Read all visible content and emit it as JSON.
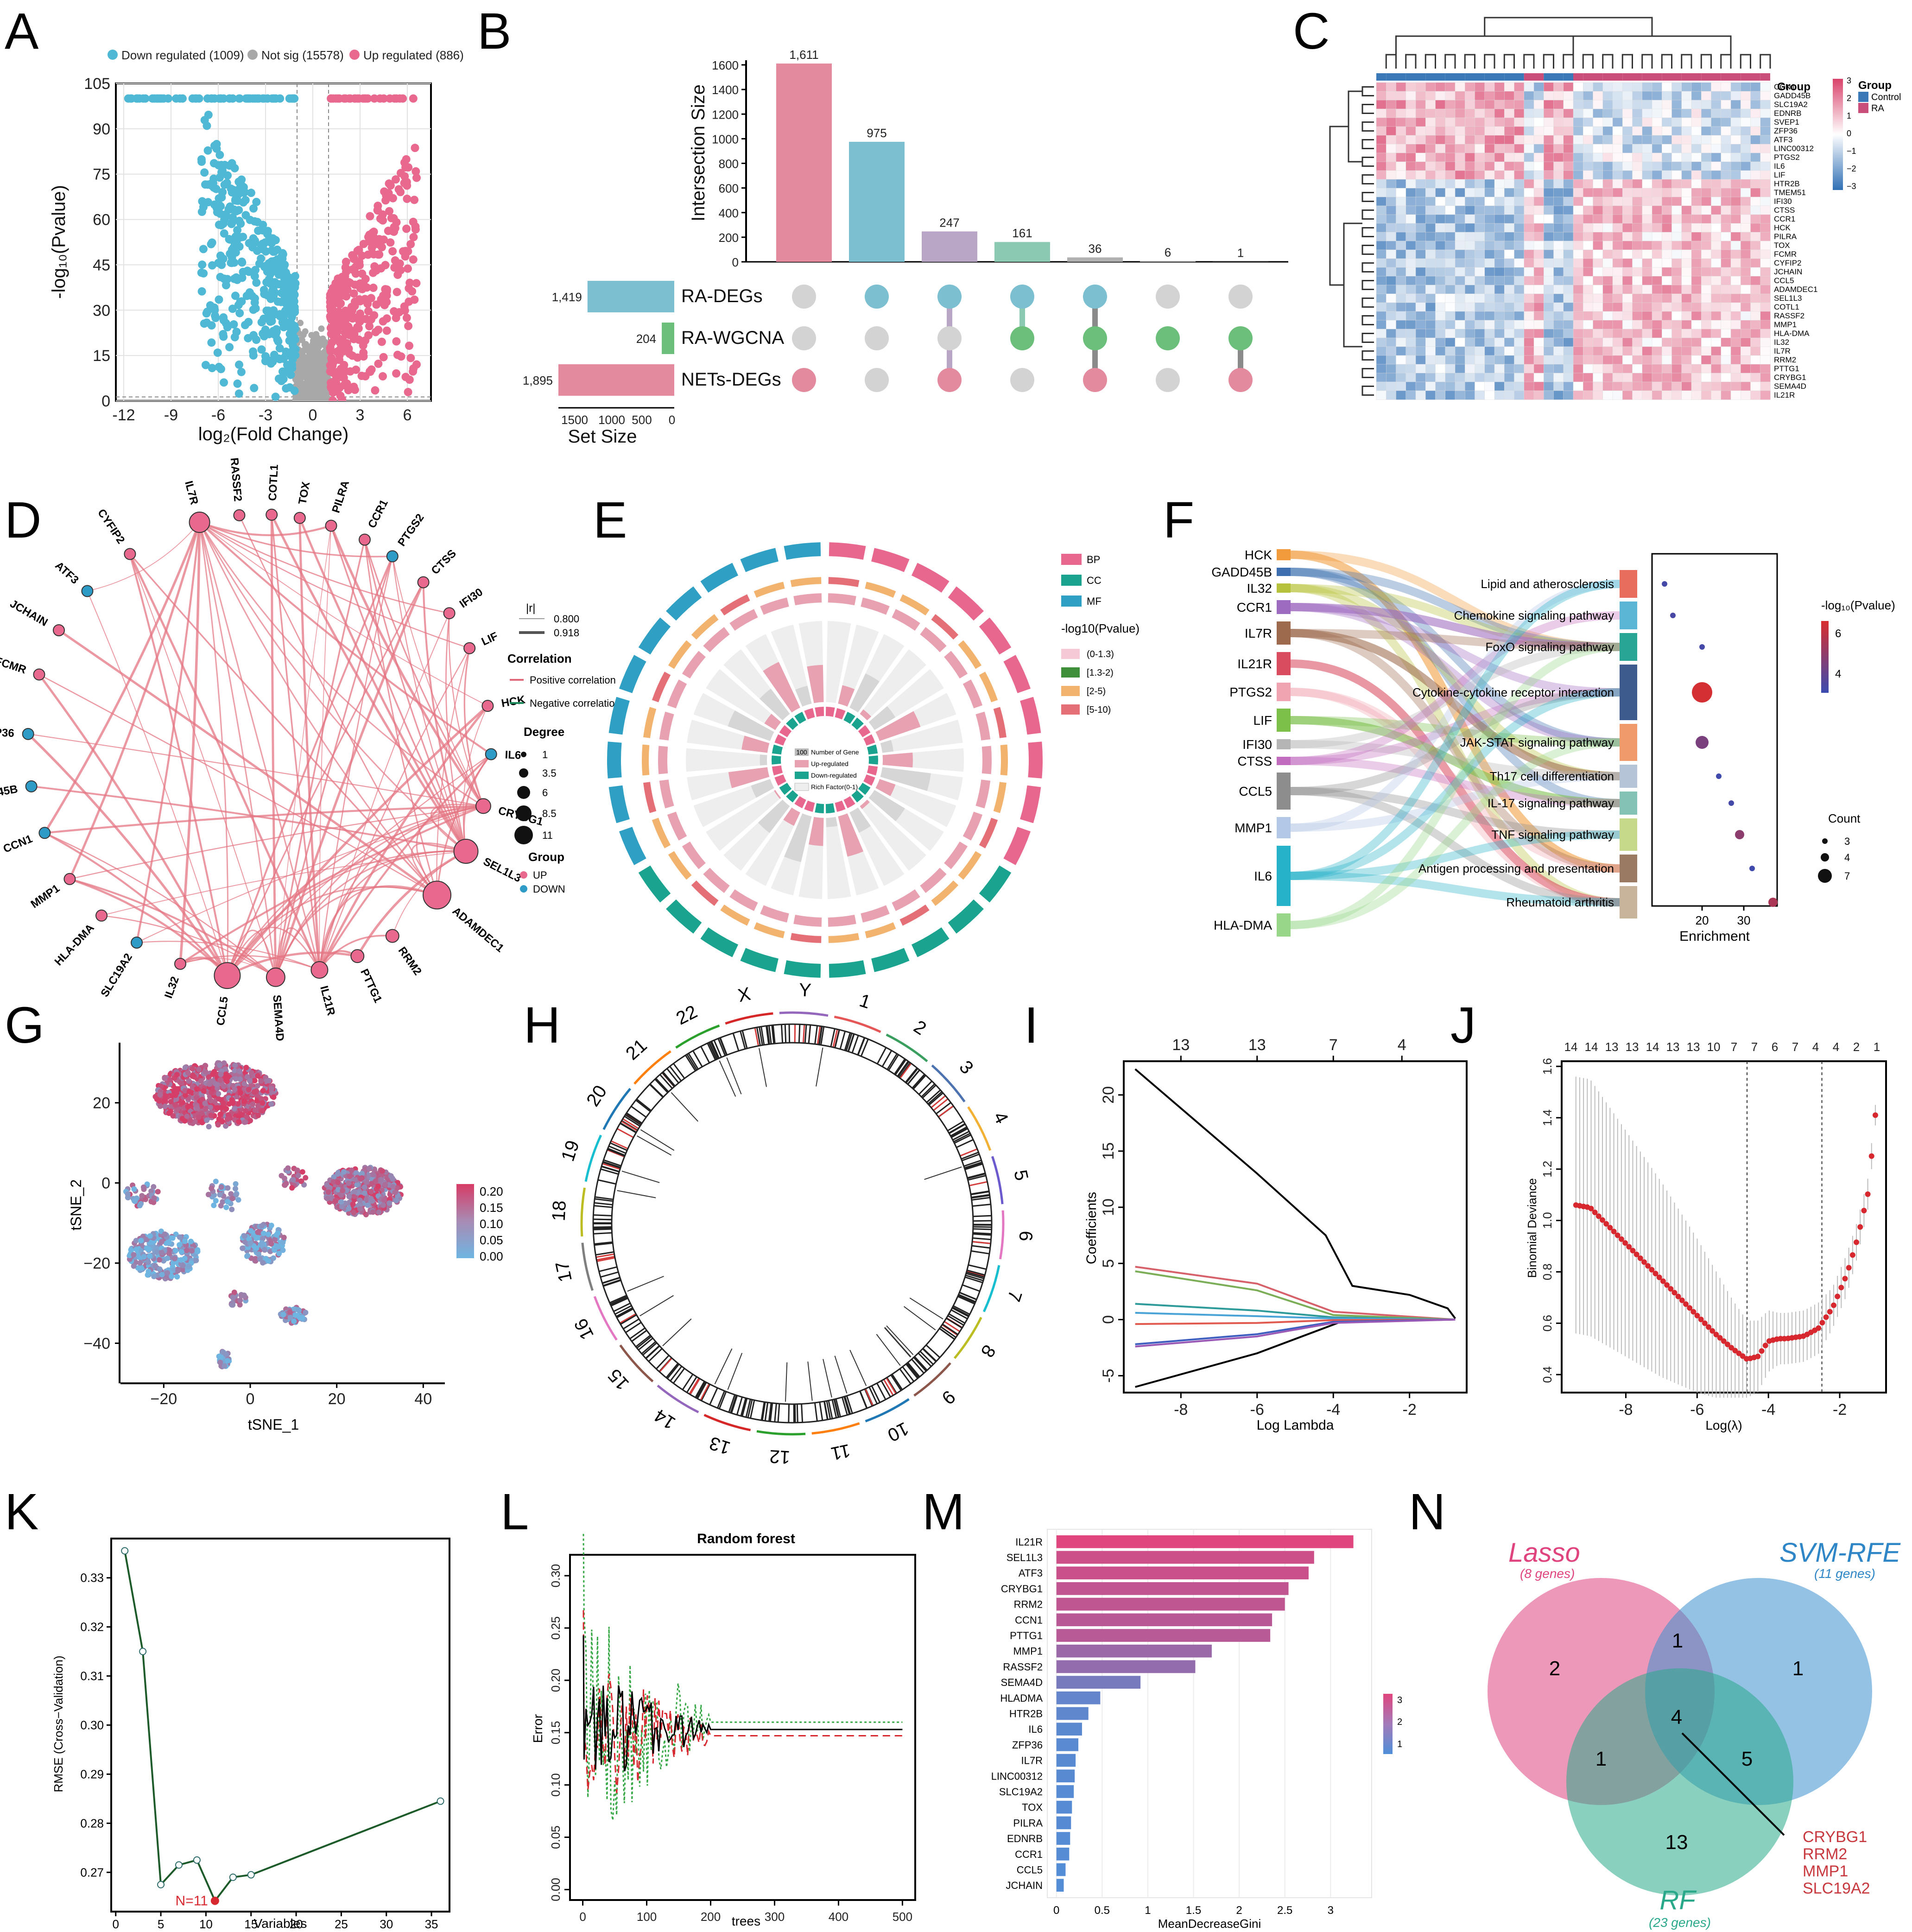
{
  "panel_labels": [
    "A",
    "B",
    "C",
    "D",
    "E",
    "F",
    "G",
    "H",
    "I",
    "J",
    "K",
    "L",
    "M",
    "N"
  ],
  "colors": {
    "down": "#4fb8d4",
    "up": "#e8688e",
    "notsig": "#a8a8a8",
    "wgcna": "#6cbf7a",
    "purple": "#b9a6c7",
    "teal": "#8bc9b3",
    "pink": "#e38a9e",
    "blue": "#7bbfd1"
  },
  "chart_data": [
    {
      "panel": "A",
      "type": "scatter",
      "legend": [
        {
          "label": "Down regulated (1009)",
          "color": "#4fb8d4"
        },
        {
          "label": "Not sig (15578)",
          "color": "#a8a8a8"
        },
        {
          "label": "Up regulated (886)",
          "color": "#e8688e"
        }
      ],
      "xlabel": "log₂(Fold Change)",
      "ylabel": "-log₁₀(Pvalue)",
      "xlim": [
        -12.5,
        7.5
      ],
      "ylim": [
        0,
        105
      ],
      "xticks": [
        -12,
        -9,
        -6,
        -3,
        0,
        3,
        6
      ],
      "yticks": [
        0,
        15,
        30,
        45,
        60,
        75,
        90,
        105
      ],
      "thresholds": {
        "fc": [
          -1,
          1
        ],
        "p": 1.3
      }
    },
    {
      "panel": "B",
      "type": "bar",
      "ylabel": "Intersection Size",
      "ylim": [
        0,
        1600
      ],
      "yticks": [
        0,
        200,
        400,
        600,
        800,
        1000,
        1200,
        1400,
        1600
      ],
      "values": [
        1611,
        975,
        247,
        161,
        36,
        6,
        1
      ],
      "value_labels": [
        "1,611",
        "975",
        "247",
        "161",
        "36",
        "6",
        "1"
      ],
      "bar_colors": [
        "#e38a9e",
        "#7bbfd1",
        "#b9a6c7",
        "#8bc9b3",
        "#b0b0b0",
        "#b0b0b0",
        "#b0b0b0"
      ],
      "sets": [
        {
          "name": "RA-DEGs",
          "size": 1419,
          "size_label": "1,419",
          "color": "#7bbfd1"
        },
        {
          "name": "RA-WGCNA",
          "size": 204,
          "size_label": "204",
          "color": "#6cbf7a"
        },
        {
          "name": "NETs-DEGs",
          "size": 1895,
          "size_label": "1,895",
          "color": "#e38a9e"
        }
      ],
      "membership": [
        [
          0,
          0,
          1
        ],
        [
          1,
          0,
          0
        ],
        [
          1,
          0,
          1
        ],
        [
          1,
          1,
          0
        ],
        [
          1,
          1,
          1
        ],
        [
          0,
          1,
          0
        ],
        [
          0,
          1,
          1
        ]
      ],
      "set_size_label": "Set Size",
      "set_size_ticks": [
        "1500",
        "1000",
        "500",
        "0"
      ]
    },
    {
      "panel": "C",
      "type": "heatmap",
      "genes": [
        "CCN1",
        "GADD45B",
        "SLC19A2",
        "EDNRB",
        "SVEP1",
        "ZFP36",
        "ATF3",
        "LINC00312",
        "PTGS2",
        "IL6",
        "LIF",
        "HTR2B",
        "TMEM51",
        "IFI30",
        "CTSS",
        "CCR1",
        "HCK",
        "PILRA",
        "TOX",
        "FCMR",
        "CYFIP2",
        "JCHAIN",
        "CCL5",
        "ADAMDEC1",
        "SEL1L3",
        "COTL1",
        "RASSF2",
        "MMP1",
        "HLA-DMA",
        "IL32",
        "IL7R",
        "RRM2",
        "PTTG1",
        "CRYBG1",
        "SEMA4D",
        "IL21R"
      ],
      "group_title": "Group",
      "groups": [
        {
          "name": "Control",
          "color": "#3a78b8"
        },
        {
          "name": "RA",
          "color": "#c94e7a"
        }
      ],
      "scale": {
        "min": -3,
        "max": 3,
        "ticks": [
          "3",
          "2",
          "1",
          "0",
          "−1",
          "−2",
          "−3"
        ]
      }
    },
    {
      "panel": "F",
      "type": "scatter",
      "pathways": [
        "Lipid and atherosclerosis",
        "Chemokine signaling pathway",
        "FoxO signaling pathway",
        "Cytokine-cytokine receptor interaction",
        "JAK-STAT signaling pathway",
        "Th17 cell differentiation",
        "IL-17 signaling pathway",
        "TNF signaling pathway",
        "Antigen processing and presentation",
        "Rheumatoid arthritis"
      ],
      "enrichment": [
        11,
        13,
        20,
        20,
        20,
        24,
        27,
        29,
        32,
        37
      ],
      "count": [
        3,
        3,
        3,
        7,
        5,
        3,
        3,
        4,
        3,
        4
      ],
      "neglogp": [
        3.5,
        3.6,
        3.5,
        6.5,
        4.6,
        3.4,
        3.5,
        5.0,
        3.4,
        5.6
      ],
      "genes": [
        "HCK",
        "GADD45B",
        "IL32",
        "CCR1",
        "IL7R",
        "IL21R",
        "PTGS2",
        "LIF",
        "IFI30",
        "CTSS",
        "CCL5",
        "MMP1",
        "IL6",
        "HLA-DMA"
      ],
      "gene_colors": [
        "#f29b3c",
        "#3d6fb0",
        "#b6c23b",
        "#9d6bbf",
        "#9d6a4d",
        "#d94b5e",
        "#f0a3b0",
        "#7cc04a",
        "#b5b5b5",
        "#c26cc0",
        "#8d8d8d",
        "#b3c7e6",
        "#26b3c9",
        "#98d68a"
      ],
      "xlabel": "Enrichment",
      "xticks": [
        20,
        30
      ],
      "xlim": [
        8,
        38
      ],
      "color_title": "-log₁₀(Pvalue)",
      "color_ticks": [
        "6",
        "4"
      ],
      "size_title": "Count",
      "size_ticks": [
        "3",
        "4",
        "7"
      ]
    },
    {
      "panel": "I",
      "type": "line",
      "xlabel": "Log Lambda",
      "ylabel": "Coefficients",
      "xlim": [
        -9.5,
        -0.5
      ],
      "ylim": [
        -6.5,
        23
      ],
      "xticks": [
        -8,
        -6,
        -4,
        -2
      ],
      "yticks": [
        -5,
        0,
        5,
        10,
        15,
        20
      ],
      "top_ticks": [
        "13",
        "13",
        "7",
        "4"
      ],
      "top_ticks_x": [
        -8,
        -6,
        -4,
        -2.2
      ],
      "series": [
        {
          "name": "s1",
          "color": "#000000",
          "x": [
            -9.2,
            -6,
            -4.2,
            -3.5,
            -2,
            -1,
            -0.8
          ],
          "y": [
            22.3,
            13,
            7.5,
            3,
            2.2,
            1,
            0.1
          ]
        },
        {
          "name": "s2",
          "color": "#000000",
          "x": [
            -9.2,
            -6,
            -3.8,
            -0.8
          ],
          "y": [
            -6,
            -3,
            -0.2,
            0
          ]
        },
        {
          "name": "s3",
          "color": "#d6616b",
          "x": [
            -9.2,
            -6,
            -4,
            -0.8
          ],
          "y": [
            4.7,
            3.2,
            0.7,
            0
          ]
        },
        {
          "name": "s4",
          "color": "#7cae58",
          "x": [
            -9.2,
            -6,
            -4,
            -0.8
          ],
          "y": [
            4.3,
            2.6,
            0.4,
            0
          ]
        },
        {
          "name": "s5",
          "color": "#2f9a9a",
          "x": [
            -9.2,
            -6,
            -4,
            -0.8
          ],
          "y": [
            1.4,
            0.8,
            0.2,
            0
          ]
        },
        {
          "name": "s6",
          "color": "#4aa3d6",
          "x": [
            -9.2,
            -6,
            -4,
            -0.8
          ],
          "y": [
            0.6,
            0.3,
            0.1,
            0
          ]
        },
        {
          "name": "s7",
          "color": "#e05a4f",
          "x": [
            -9.2,
            -6,
            -4,
            -0.8
          ],
          "y": [
            -0.4,
            -0.3,
            -0.05,
            0
          ]
        },
        {
          "name": "s8",
          "color": "#3e5fbf",
          "x": [
            -9.2,
            -6,
            -4,
            -0.8
          ],
          "y": [
            -2.2,
            -1.3,
            -0.2,
            0
          ]
        },
        {
          "name": "s9",
          "color": "#9b59b6",
          "x": [
            -9.2,
            -6,
            -4,
            -0.8
          ],
          "y": [
            -2.4,
            -1.5,
            -0.3,
            0
          ]
        }
      ]
    },
    {
      "panel": "J",
      "type": "line",
      "xlabel": "Log(λ)",
      "ylabel": "Binomial Deviance",
      "xlim": [
        -9.8,
        -0.7
      ],
      "ylim": [
        0.33,
        1.62
      ],
      "xticks": [
        -8,
        -6,
        -4,
        -2
      ],
      "yticks": [
        0.4,
        0.6,
        0.8,
        1.0,
        1.2,
        1.4,
        1.6
      ],
      "top_ticks": [
        "14",
        "14",
        "13",
        "13",
        "14",
        "13",
        "13",
        "10",
        "7",
        "7",
        "6",
        "7",
        "4",
        "4",
        "2",
        "1"
      ],
      "vlines": [
        -4.6,
        -2.5
      ],
      "x": [
        -9.4,
        -9,
        -8.5,
        -8,
        -7.5,
        -7,
        -6.5,
        -6,
        -5.5,
        -5,
        -4.6,
        -4.3,
        -4,
        -3.7,
        -3.5,
        -3,
        -2.6,
        -2.2,
        -1.8,
        -1.5,
        -1.2,
        -1
      ],
      "y": [
        1.06,
        1.05,
        0.98,
        0.91,
        0.84,
        0.77,
        0.7,
        0.63,
        0.56,
        0.5,
        0.46,
        0.47,
        0.53,
        0.54,
        0.54,
        0.55,
        0.58,
        0.66,
        0.79,
        0.93,
        1.11,
        1.41
      ],
      "err": [
        0.5,
        0.5,
        0.47,
        0.44,
        0.41,
        0.38,
        0.34,
        0.3,
        0.25,
        0.19,
        0.15,
        0.14,
        0.12,
        0.1,
        0.1,
        0.1,
        0.1,
        0.08,
        0.08,
        0.07,
        0.06,
        0.04
      ]
    },
    {
      "panel": "K",
      "type": "line",
      "xlabel": "Variables",
      "ylabel": "RMSE (Cross−Validation)",
      "xlim": [
        -0.5,
        37
      ],
      "ylim": [
        0.262,
        0.338
      ],
      "xticks": [
        0,
        5,
        10,
        15,
        20,
        25,
        30,
        35
      ],
      "yticks": [
        0.27,
        0.28,
        0.29,
        0.3,
        0.31,
        0.32,
        0.33
      ],
      "x": [
        1,
        3,
        5,
        7,
        9,
        11,
        13,
        15,
        36
      ],
      "y": [
        0.3355,
        0.315,
        0.2675,
        0.2715,
        0.2725,
        0.2642,
        0.269,
        0.2695,
        0.2845
      ],
      "best": {
        "x": 11,
        "y": 0.2642,
        "label": "N=11"
      }
    },
    {
      "panel": "L",
      "type": "line",
      "title": "Random forest",
      "xlabel": "trees",
      "ylabel": "Error",
      "xlim": [
        -20,
        520
      ],
      "ylim": [
        -0.01,
        0.32
      ],
      "xticks": [
        0,
        100,
        200,
        300,
        400,
        500
      ],
      "yticks": [
        0.0,
        0.05,
        0.1,
        0.15,
        0.2,
        0.25,
        0.3
      ],
      "plateaus": {
        "oob": 0.153,
        "class1": 0.16,
        "class2": 0.147
      }
    },
    {
      "panel": "M",
      "type": "bar",
      "categories": [
        "IL21R",
        "SEL1L3",
        "ATF3",
        "CRYBG1",
        "RRM2",
        "CCN1",
        "PTTG1",
        "MMP1",
        "RASSF2",
        "SEMA4D",
        "HLADMA",
        "HTR2B",
        "IL6",
        "ZFP36",
        "IL7R",
        "LINC00312",
        "SLC19A2",
        "TOX",
        "PILRA",
        "EDNRB",
        "CCR1",
        "CCL5",
        "JCHAIN"
      ],
      "values": [
        3.25,
        2.82,
        2.76,
        2.54,
        2.5,
        2.36,
        2.34,
        1.7,
        1.52,
        0.92,
        0.48,
        0.35,
        0.28,
        0.24,
        0.21,
        0.2,
        0.19,
        0.17,
        0.16,
        0.15,
        0.14,
        0.1,
        0.08
      ],
      "xlabel": "MeanDecreaseGini",
      "xlim": [
        -0.1,
        3.45
      ],
      "xticks": [
        0,
        0.5,
        1,
        1.5,
        2,
        2.5,
        3
      ],
      "xtick_labels": [
        "0",
        "0.5",
        "1",
        "1.5",
        "2",
        "2.5",
        "3"
      ],
      "scale_ticks": [
        "3",
        "2",
        "1"
      ]
    }
  ],
  "panelD": {
    "genes_up": [
      "IL7R",
      "RASSF2",
      "COTL1",
      "TOX",
      "PILRA",
      "CCR1",
      "CTSS",
      "IFI30",
      "LIF",
      "HCK",
      "CRYBG1",
      "SEL1L3",
      "ADAMDEC1",
      "RRM2",
      "PTTG1",
      "IL21R",
      "SEMA4D",
      "CCL5",
      "IL32",
      "HLA-DMA",
      "MMP1",
      "FCMR",
      "JCHAIN",
      "CYFIP2"
    ],
    "genes_down": [
      "PTGS2",
      "IL6",
      "SLC19A2",
      "CCN1",
      "GADD45B",
      "ZFP36",
      "ATF3"
    ],
    "r_title": "|r|",
    "r_ticks": [
      "0.800",
      "0.918"
    ],
    "corr_title": "Correlation",
    "corr_pos": "Positive correlation",
    "corr_neg": "Negative correlation",
    "degree_title": "Degree",
    "degree_ticks": [
      "1",
      "3.5",
      "6",
      "8.5",
      "11"
    ],
    "group_title": "Group",
    "group_up": "UP",
    "group_down": "DOWN"
  },
  "panelE": {
    "legend_ont": [
      "BP",
      "CC",
      "MF"
    ],
    "legend_ont_colors": [
      "#e8678f",
      "#1aa38e",
      "#2f9fc3"
    ],
    "p_title": "-log10(Pvalue)",
    "p_bins": [
      "(0-1.3)",
      "[1.3-2)",
      "[2-5)",
      "[5-10)"
    ],
    "p_colors": [
      "#f6c9d6",
      "#3f8f3a",
      "#f2b36f",
      "#e46f76"
    ],
    "inner_legend": [
      "100",
      "Number of Gene",
      "Up-regulated",
      "Down-regulated",
      "Rich Factor(0-1)"
    ]
  },
  "panelG": {
    "xlabel": "tSNE_1",
    "ylabel": "tSNE_2",
    "xticks": [
      "−20",
      "0",
      "20",
      "40"
    ],
    "yticks": [
      "20",
      "0",
      "−20",
      "−40"
    ],
    "scale_ticks": [
      "0.20",
      "0.15",
      "0.10",
      "0.05",
      "0.00"
    ]
  },
  "panelH": {
    "chromosomes": [
      "1",
      "2",
      "3",
      "4",
      "5",
      "6",
      "7",
      "8",
      "9",
      "10",
      "11",
      "12",
      "13",
      "14",
      "15",
      "16",
      "17",
      "18",
      "19",
      "20",
      "21",
      "22",
      "X",
      "Y"
    ]
  },
  "panelN": {
    "sets": [
      {
        "name": "Lasso",
        "sub": "(8 genes)",
        "color": "#e0447f"
      },
      {
        "name": "SVM-RFE",
        "sub": "(11 genes)",
        "color": "#2e86c6"
      },
      {
        "name": "RF",
        "sub": "(23 genes)",
        "color": "#2aa98a"
      }
    ],
    "counts": {
      "lasso_only": "2",
      "svm_only": "1",
      "rf_only": "13",
      "lasso_svm": "1",
      "lasso_rf": "1",
      "svm_rf": "5",
      "all": "4"
    },
    "core_genes": [
      "CRYBG1",
      "RRM2",
      "MMP1",
      "SLC19A2"
    ]
  }
}
